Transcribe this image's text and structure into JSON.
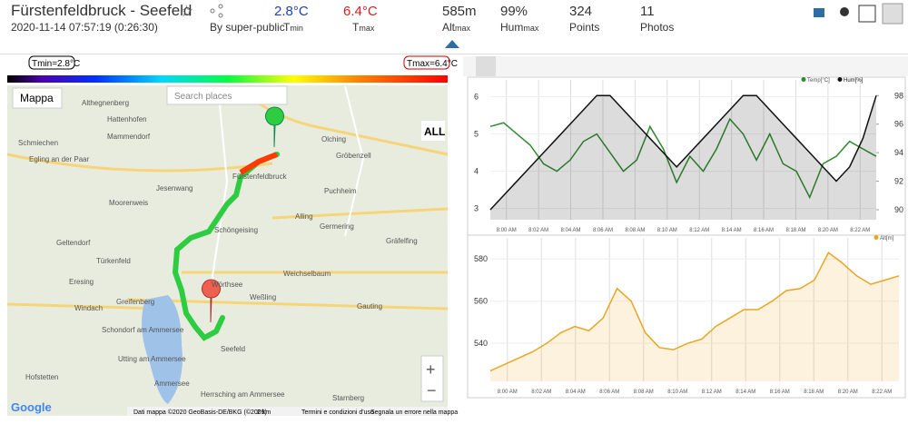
{
  "header": {
    "title": "Fürstenfeldbruck - Seefeld",
    "date": "2020-11-14 07:57:19 (0:26:30)",
    "by": "By super-public",
    "stats": [
      {
        "value": "2.8°C",
        "label": "T",
        "sub": "min"
      },
      {
        "value": "6.4°C",
        "label": "T",
        "sub": "max"
      },
      {
        "value": "585m",
        "label": "Alt",
        "sub": "max"
      },
      {
        "value": "99%",
        "label": "Hum",
        "sub": "max"
      },
      {
        "value": "324",
        "label": "Points",
        "sub": null
      },
      {
        "value": "11",
        "label": "Photos",
        "sub": null
      }
    ]
  },
  "map": {
    "tmin_label": "Tmin=2.8°C",
    "tmax_label": "Tmax=6.4°C",
    "layer_button": "Mappa",
    "search_placeholder": "Search places",
    "all_button": "ALL",
    "places": [
      "Althegnenberg",
      "Hattenhofen",
      "Mammendorf",
      "Schmiechen",
      "Egling an der Paar",
      "Jesenwang",
      "Moorenweis",
      "Olching",
      "Gröbenzell",
      "Fürstenfeldbruck",
      "Puchheim",
      "Germering",
      "Schöngeising",
      "Alling",
      "Geltendorf",
      "Türkenfeld",
      "Gräfelfing",
      "Eresing",
      "Weichselbaum",
      "Windach",
      "Greifenberg",
      "Wörthsee",
      "Weßling",
      "Gauting",
      "Schondorf am Ammersee",
      "Utting am Ammersee",
      "Seefeld",
      "Hofstetten",
      "Herrsching am Ammersee",
      "Starnberg",
      "Ammersee"
    ],
    "footer": {
      "logo": "Google",
      "copyright": "Dati mappa ©2020 GeoBasis-DE/BKG (©2009)",
      "scale": "2 km",
      "terms": "Termini e condizioni d'uso",
      "report": "Segnala un errore nella mappa"
    }
  },
  "charts": [
    {
      "type": "line",
      "categories": [
        "8:00 AM",
        "8:02 AM",
        "8:04 AM",
        "8:06 AM",
        "8:08 AM",
        "8:10 AM",
        "8:12 AM",
        "8:14 AM",
        "8:16 AM",
        "8:18 AM",
        "8:20 AM",
        "8:22 AM"
      ],
      "ylim": [
        2.7,
        6.45
      ],
      "yticks": [
        3,
        4,
        5,
        6
      ],
      "y2lim": [
        89.3,
        99.1
      ],
      "y2ticks": [
        90,
        92,
        94,
        96,
        98
      ],
      "series": [
        {
          "name": "Temp[°C]",
          "color": "#2e8b2e",
          "values": [
            5.2,
            5.3,
            5.0,
            4.7,
            4.2,
            4.0,
            4.3,
            4.8,
            5.0,
            4.5,
            4.0,
            4.3,
            5.2,
            4.6,
            3.7,
            4.4,
            4.0,
            4.6,
            5.4,
            5.0,
            4.3,
            5.0,
            4.2,
            4.0,
            3.3,
            4.2,
            4.4,
            4.8,
            4.6,
            4.4
          ]
        },
        {
          "name": "Hum[%]",
          "color": "#111111",
          "axis": "y2",
          "values": [
            90,
            91,
            92,
            93,
            94,
            95,
            96,
            97,
            98,
            98,
            97,
            96,
            95,
            94,
            93,
            94,
            95,
            96,
            97,
            98,
            98,
            97,
            96,
            95,
            94,
            93,
            92,
            93,
            95,
            98
          ]
        }
      ]
    },
    {
      "type": "area",
      "categories": [
        "8:00 AM",
        "8:02 AM",
        "8:04 AM",
        "8:06 AM",
        "8:08 AM",
        "8:10 AM",
        "8:12 AM",
        "8:14 AM",
        "8:16 AM",
        "8:18 AM",
        "8:20 AM",
        "8:22 AM"
      ],
      "ylim": [
        522,
        590
      ],
      "yticks": [
        540,
        560,
        580
      ],
      "series": [
        {
          "name": "Alt[m]",
          "color": "#e8a623",
          "values": [
            527,
            530,
            533,
            536,
            540,
            545,
            548,
            546,
            552,
            566,
            560,
            545,
            538,
            537,
            540,
            542,
            548,
            552,
            556,
            556,
            560,
            565,
            566,
            570,
            583,
            578,
            572,
            568,
            570,
            572
          ]
        }
      ]
    }
  ]
}
